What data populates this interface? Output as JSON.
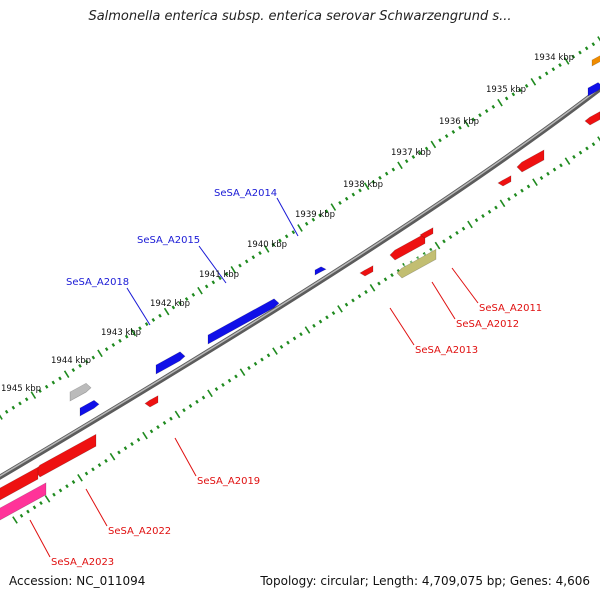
{
  "title": "Salmonella enterica subsp. enterica serovar Schwarzengrund s...",
  "footer": {
    "accession": "Accession: NC_011094",
    "summary": "Topology: circular; Length: 4,709,075 bp; Genes: 4,606"
  },
  "colors": {
    "backbone": "#8a8a8a",
    "dots": "#1f8a1f",
    "forward_gene": "#1010e8",
    "reverse_gene": "#ee1111",
    "pink_gene": "#ff3399",
    "olive_gene": "#c2be72",
    "grey_gene": "#bbbbbb",
    "orange_gene": "#f08c00",
    "forward_label": "#1a1ad6",
    "reverse_label": "#e01010"
  },
  "kbp_ticks": [
    "1934 kbp",
    "1935 kbp",
    "1936 kbp",
    "1937 kbp",
    "1938 kbp",
    "1939 kbp",
    "1940 kbp",
    "1941 kbp",
    "1942 kbp",
    "1943 kbp",
    "1944 kbp",
    "1945 kbp"
  ],
  "gene_labels": {
    "forward": [
      "SeSA_A2014",
      "SeSA_A2015",
      "SeSA_A2018"
    ],
    "reverse": [
      "SeSA_A2011",
      "SeSA_A2012",
      "SeSA_A2013",
      "SeSA_A2019",
      "SeSA_A2022",
      "SeSA_A2023"
    ]
  }
}
